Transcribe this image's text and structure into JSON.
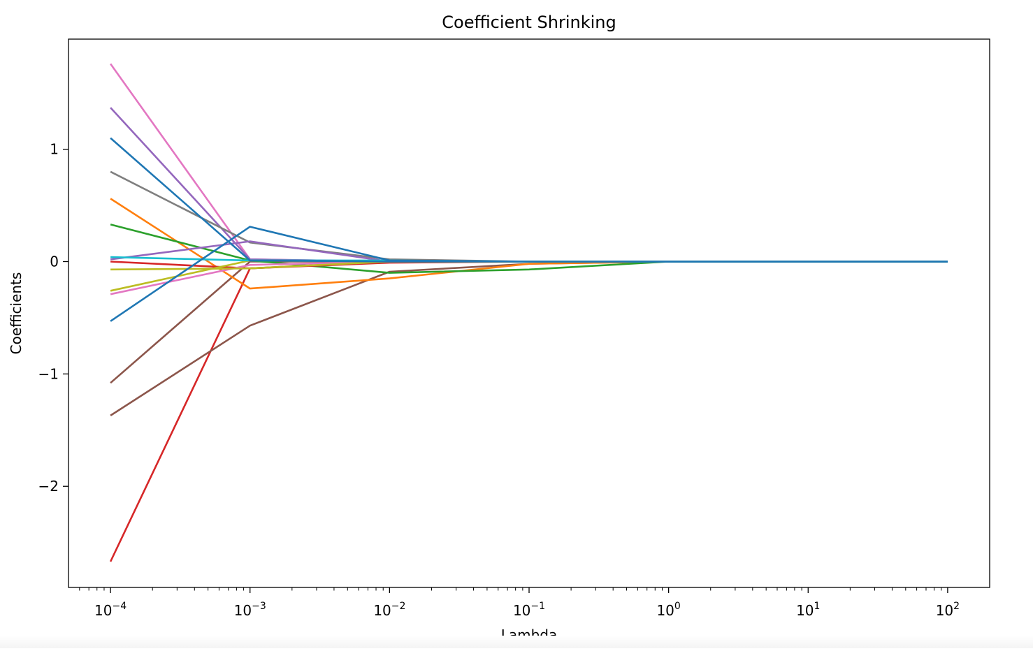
{
  "chart_data": {
    "type": "line",
    "title": "Coefficient Shrinking",
    "xlabel": "Lambda",
    "ylabel": "Coefficients",
    "xscale": "log",
    "xlim": [
      5e-05,
      200
    ],
    "ylim": [
      -2.9,
      1.98
    ],
    "grid": false,
    "legend": "none",
    "x": [
      0.0001,
      0.001,
      0.01,
      0.1,
      1,
      10,
      100
    ],
    "x_ticks": [
      {
        "value": 0.0001,
        "base": "10",
        "exp": "−4"
      },
      {
        "value": 0.001,
        "base": "10",
        "exp": "−3"
      },
      {
        "value": 0.01,
        "base": "10",
        "exp": "−2"
      },
      {
        "value": 0.1,
        "base": "10",
        "exp": "−1"
      },
      {
        "value": 1,
        "base": "10",
        "exp": "0"
      },
      {
        "value": 10,
        "base": "10",
        "exp": "1"
      },
      {
        "value": 100,
        "base": "10",
        "exp": "2"
      }
    ],
    "y_ticks": [
      {
        "value": 1,
        "label": "1"
      },
      {
        "value": 0,
        "label": "0"
      },
      {
        "value": -1,
        "label": "−1"
      },
      {
        "value": -2,
        "label": "−2"
      }
    ],
    "series": [
      {
        "color": "#d62728",
        "values": [
          -2.67,
          -0.06,
          0.0,
          0.0,
          0.0,
          0.0,
          0.0
        ]
      },
      {
        "color": "#8c564b",
        "values": [
          -1.37,
          -0.57,
          -0.09,
          -0.02,
          0.0,
          0.0,
          0.0
        ]
      },
      {
        "color": "#8c564b",
        "values": [
          -1.08,
          0.0,
          0.0,
          0.0,
          0.0,
          0.0,
          0.0
        ]
      },
      {
        "color": "#e377c2",
        "values": [
          1.76,
          0.02,
          0.0,
          0.0,
          0.0,
          0.0,
          0.0
        ]
      },
      {
        "color": "#9467bd",
        "values": [
          1.37,
          0.02,
          0.0,
          0.0,
          0.0,
          0.0,
          0.0
        ]
      },
      {
        "color": "#7f7f7f",
        "values": [
          0.8,
          0.17,
          0.02,
          0.0,
          0.0,
          0.0,
          0.0
        ]
      },
      {
        "color": "#ff7f0e",
        "values": [
          0.56,
          -0.24,
          -0.15,
          -0.02,
          0.0,
          0.0,
          0.0
        ]
      },
      {
        "color": "#2ca02c",
        "values": [
          0.33,
          0.01,
          -0.1,
          -0.07,
          0.0,
          0.0,
          0.0
        ]
      },
      {
        "color": "#9467bd",
        "values": [
          0.02,
          0.18,
          0.0,
          0.0,
          0.0,
          0.0,
          0.0
        ]
      },
      {
        "color": "#d62728",
        "values": [
          0.0,
          -0.06,
          -0.01,
          0.0,
          0.0,
          0.0,
          0.0
        ]
      },
      {
        "color": "#e377c2",
        "values": [
          -0.29,
          -0.03,
          0.0,
          0.0,
          0.0,
          0.0,
          0.0
        ]
      },
      {
        "color": "#bcbd22",
        "values": [
          -0.26,
          0.01,
          0.0,
          0.0,
          0.0,
          0.0,
          0.0
        ]
      },
      {
        "color": "#bcbd22",
        "values": [
          -0.07,
          -0.06,
          0.0,
          0.0,
          0.0,
          0.0,
          0.0
        ]
      },
      {
        "color": "#17becf",
        "values": [
          0.04,
          0.01,
          0.01,
          0.0,
          0.0,
          0.0,
          0.0
        ]
      },
      {
        "color": "#1f77b4",
        "values": [
          1.1,
          0.01,
          0.0,
          0.0,
          0.0,
          0.0,
          0.0
        ]
      },
      {
        "color": "#1f77b4",
        "values": [
          -0.53,
          0.31,
          0.01,
          0.0,
          0.0,
          0.0,
          0.0
        ]
      }
    ]
  }
}
